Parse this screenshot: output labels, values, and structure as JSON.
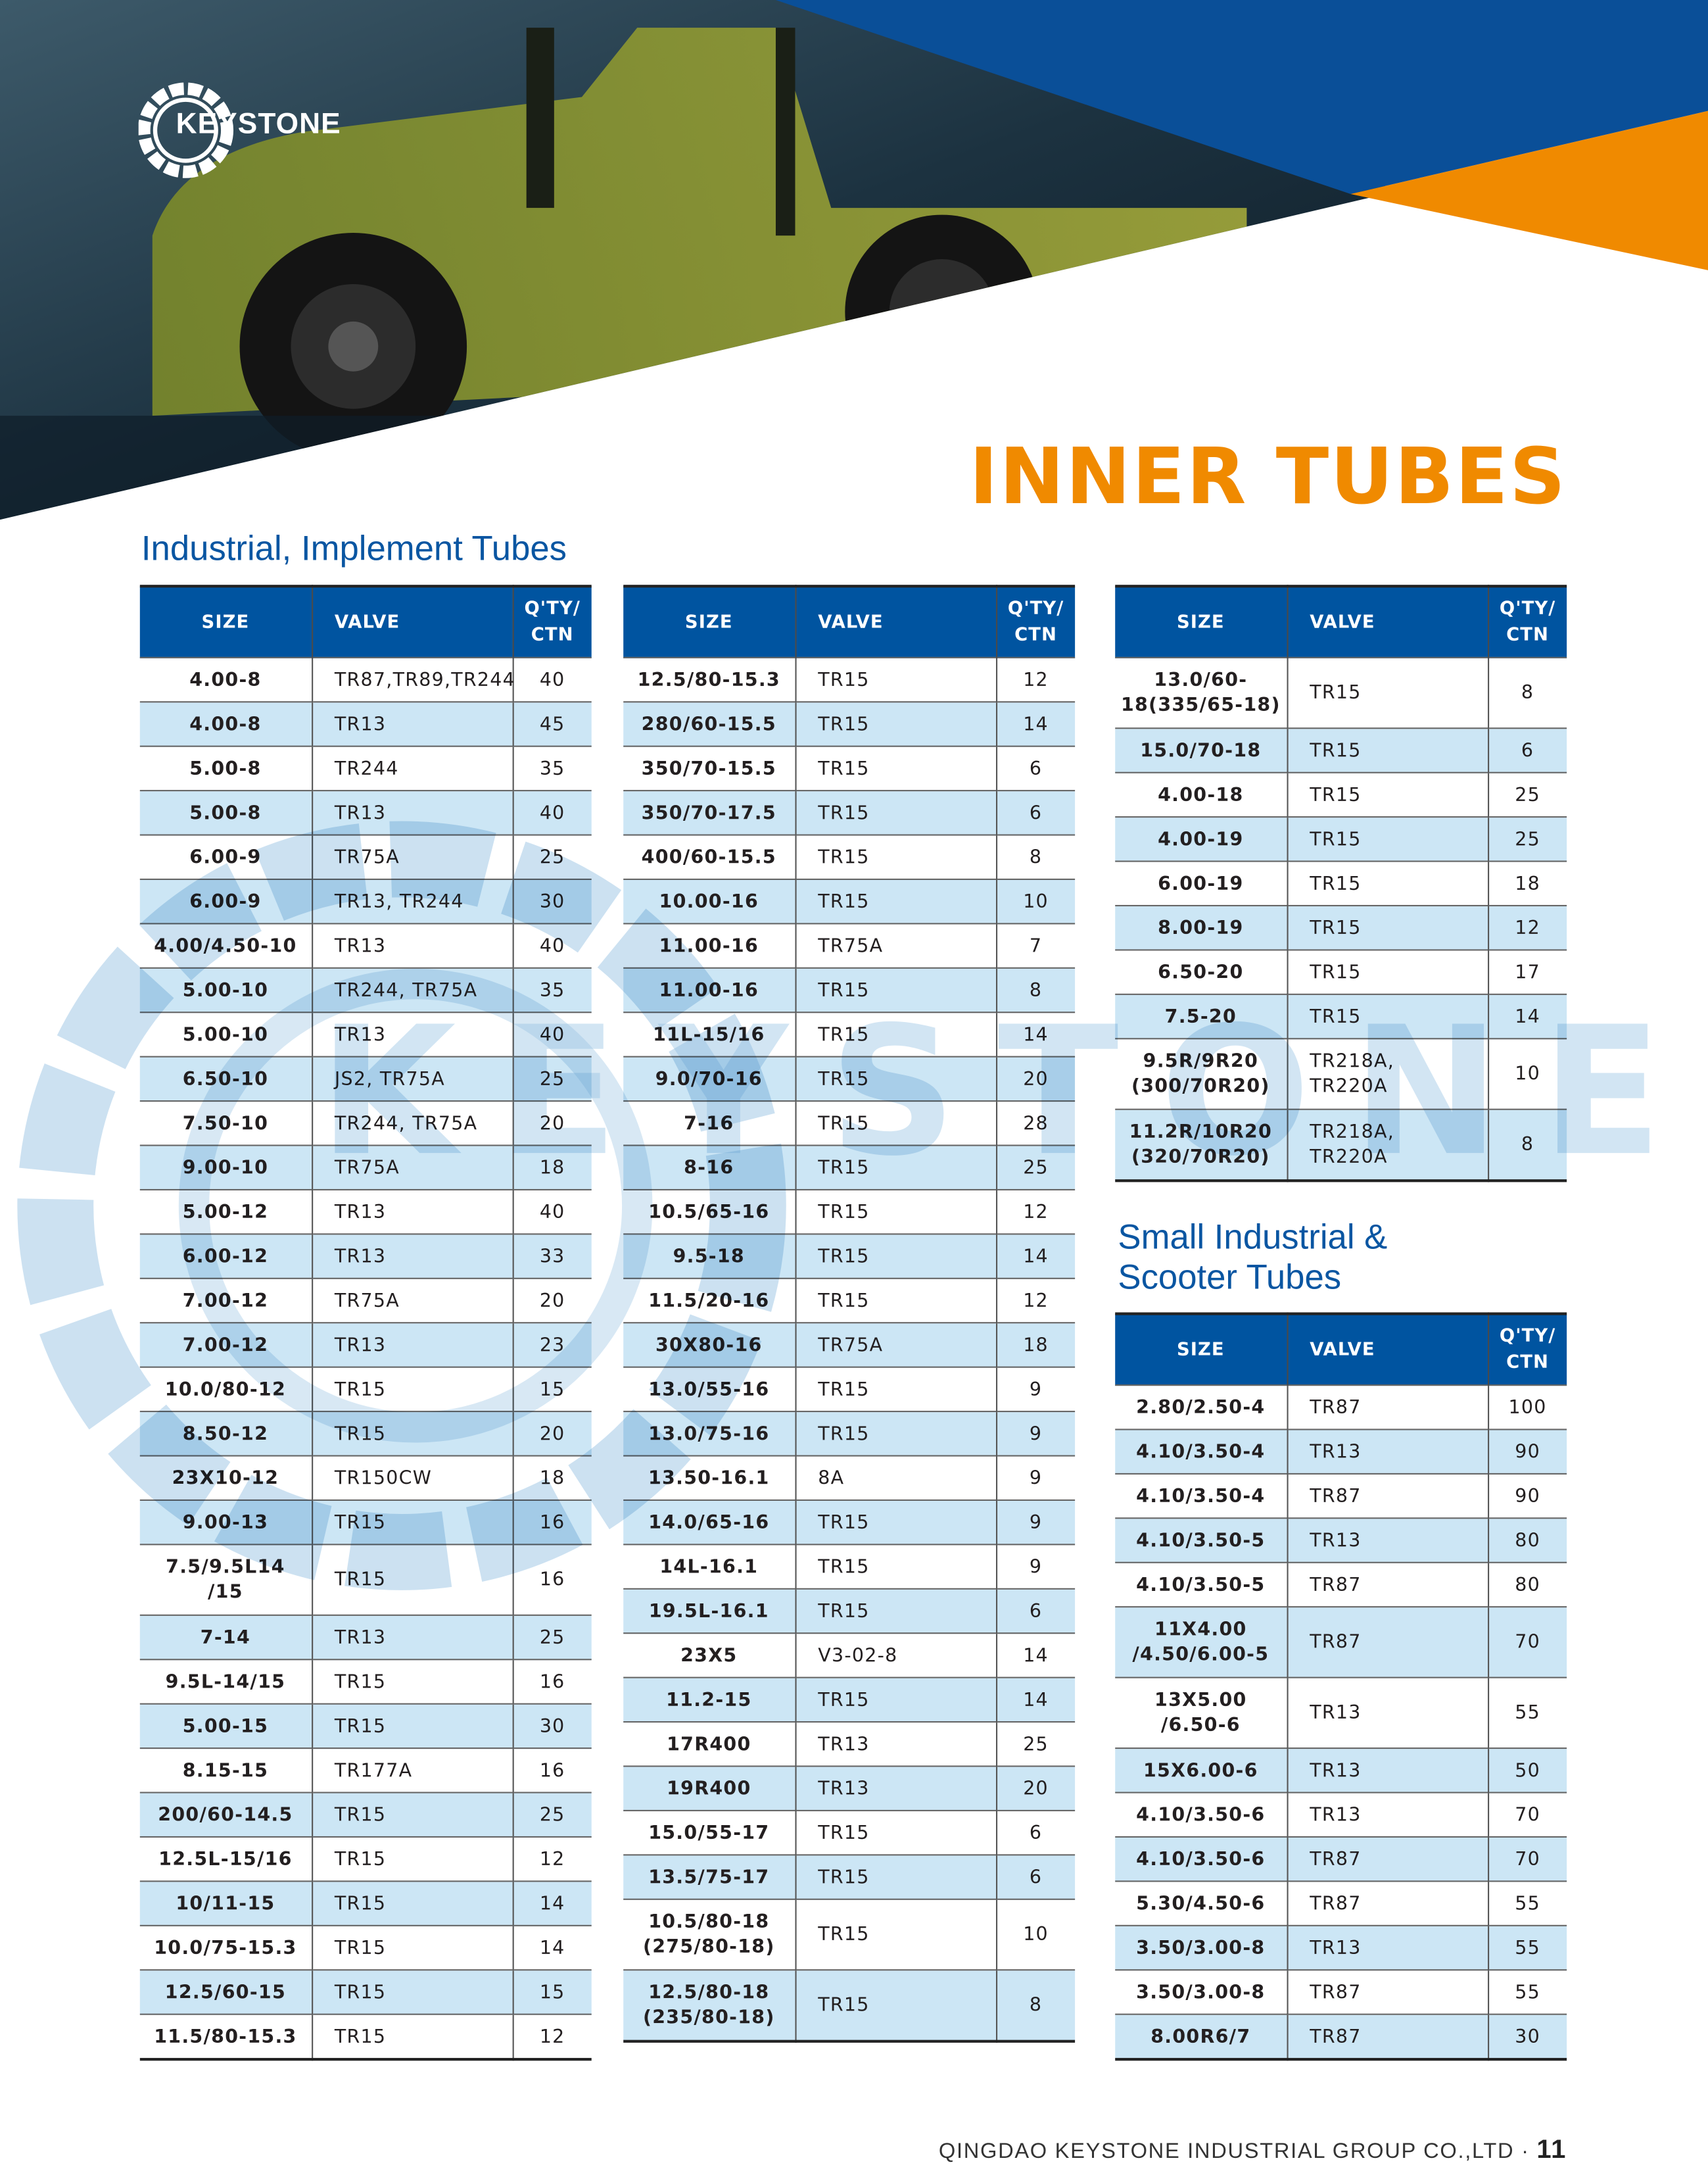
{
  "brand": {
    "logo_text": "KEYSTONE",
    "watermark_text": "KEYSTONE"
  },
  "colors": {
    "brand_blue": "#0054a0",
    "accent_orange": "#f08a00",
    "row_alt": "#cce6f5",
    "heading_blue": "#0a56a2"
  },
  "title": "INNER TUBES",
  "sections": {
    "industrial": "Industrial, Implement Tubes",
    "small": "Small Industrial &\nScooter Tubes"
  },
  "headers": {
    "size": "SIZE",
    "valve": "VALVE",
    "qty": "Q'TY/\nCTN"
  },
  "tables": [
    {
      "rows": [
        [
          "4.00-8",
          "TR87,TR89,TR244",
          "40"
        ],
        [
          "4.00-8",
          "TR13",
          "45"
        ],
        [
          "5.00-8",
          "TR244",
          "35"
        ],
        [
          "5.00-8",
          "TR13",
          "40"
        ],
        [
          "6.00-9",
          "TR75A",
          "25"
        ],
        [
          "6.00-9",
          "TR13, TR244",
          "30"
        ],
        [
          "4.00/4.50-10",
          "TR13",
          "40"
        ],
        [
          "5.00-10",
          "TR244, TR75A",
          "35"
        ],
        [
          "5.00-10",
          "TR13",
          "40"
        ],
        [
          "6.50-10",
          "JS2, TR75A",
          "25"
        ],
        [
          "7.50-10",
          "TR244, TR75A",
          "20"
        ],
        [
          "9.00-10",
          "TR75A",
          "18"
        ],
        [
          "5.00-12",
          "TR13",
          "40"
        ],
        [
          "6.00-12",
          "TR13",
          "33"
        ],
        [
          "7.00-12",
          "TR75A",
          "20"
        ],
        [
          "7.00-12",
          "TR13",
          "23"
        ],
        [
          "10.0/80-12",
          "TR15",
          "15"
        ],
        [
          "8.50-12",
          "TR15",
          "20"
        ],
        [
          "23X10-12",
          "TR150CW",
          "18"
        ],
        [
          "9.00-13",
          "TR15",
          "16"
        ],
        [
          "7.5/9.5L14\n/15",
          "TR15",
          "16"
        ],
        [
          "7-14",
          "TR13",
          "25"
        ],
        [
          "9.5L-14/15",
          "TR15",
          "16"
        ],
        [
          "5.00-15",
          "TR15",
          "30"
        ],
        [
          "8.15-15",
          "TR177A",
          "16"
        ],
        [
          "200/60-14.5",
          "TR15",
          "25"
        ],
        [
          "12.5L-15/16",
          "TR15",
          "12"
        ],
        [
          "10/11-15",
          "TR15",
          "14"
        ],
        [
          "10.0/75-15.3",
          "TR15",
          "14"
        ],
        [
          "12.5/60-15",
          "TR15",
          "15"
        ],
        [
          "11.5/80-15.3",
          "TR15",
          "12"
        ]
      ]
    },
    {
      "rows": [
        [
          "12.5/80-15.3",
          "TR15",
          "12"
        ],
        [
          "280/60-15.5",
          "TR15",
          "14"
        ],
        [
          "350/70-15.5",
          "TR15",
          "6"
        ],
        [
          "350/70-17.5",
          "TR15",
          "6"
        ],
        [
          "400/60-15.5",
          "TR15",
          "8"
        ],
        [
          "10.00-16",
          "TR15",
          "10"
        ],
        [
          "11.00-16",
          "TR75A",
          "7"
        ],
        [
          "11.00-16",
          "TR15",
          "8"
        ],
        [
          "11L-15/16",
          "TR15",
          "14"
        ],
        [
          "9.0/70-16",
          "TR15",
          "20"
        ],
        [
          "7-16",
          "TR15",
          "28"
        ],
        [
          "8-16",
          "TR15",
          "25"
        ],
        [
          "10.5/65-16",
          "TR15",
          "12"
        ],
        [
          "9.5-18",
          "TR15",
          "14"
        ],
        [
          "11.5/20-16",
          "TR15",
          "12"
        ],
        [
          "30X80-16",
          "TR75A",
          "18"
        ],
        [
          "13.0/55-16",
          "TR15",
          "9"
        ],
        [
          "13.0/75-16",
          "TR15",
          "9"
        ],
        [
          "13.50-16.1",
          "8A",
          "9"
        ],
        [
          "14.0/65-16",
          "TR15",
          "9"
        ],
        [
          "14L-16.1",
          "TR15",
          "9"
        ],
        [
          "19.5L-16.1",
          "TR15",
          "6"
        ],
        [
          "23X5",
          "V3-02-8",
          "14"
        ],
        [
          "11.2-15",
          "TR15",
          "14"
        ],
        [
          "17R400",
          "TR13",
          "25"
        ],
        [
          "19R400",
          "TR13",
          "20"
        ],
        [
          "15.0/55-17",
          "TR15",
          "6"
        ],
        [
          "13.5/75-17",
          "TR15",
          "6"
        ],
        [
          "10.5/80-18\n(275/80-18)",
          "TR15",
          "10"
        ],
        [
          "12.5/80-18\n(235/80-18)",
          "TR15",
          "8"
        ]
      ]
    },
    {
      "rows": [
        [
          "13.0/60-\n18(335/65-18)",
          "TR15",
          "8"
        ],
        [
          "15.0/70-18",
          "TR15",
          "6"
        ],
        [
          "4.00-18",
          "TR15",
          "25"
        ],
        [
          "4.00-19",
          "TR15",
          "25"
        ],
        [
          "6.00-19",
          "TR15",
          "18"
        ],
        [
          "8.00-19",
          "TR15",
          "12"
        ],
        [
          "6.50-20",
          "TR15",
          "17"
        ],
        [
          "7.5-20",
          "TR15",
          "14"
        ],
        [
          "9.5R/9R20\n(300/70R20)",
          "TR218A,\nTR220A",
          "10"
        ],
        [
          "11.2R/10R20\n(320/70R20)",
          "TR218A,\nTR220A",
          "8"
        ]
      ]
    },
    {
      "rows": [
        [
          "2.80/2.50-4",
          "TR87",
          "100"
        ],
        [
          "4.10/3.50-4",
          "TR13",
          "90"
        ],
        [
          "4.10/3.50-4",
          "TR87",
          "90"
        ],
        [
          "4.10/3.50-5",
          "TR13",
          "80"
        ],
        [
          "4.10/3.50-5",
          "TR87",
          "80"
        ],
        [
          "11X4.00\n/4.50/6.00-5",
          "TR87",
          "70"
        ],
        [
          "13X5.00\n/6.50-6",
          "TR13",
          "55"
        ],
        [
          "15X6.00-6",
          "TR13",
          "50"
        ],
        [
          "4.10/3.50-6",
          "TR13",
          "70"
        ],
        [
          "4.10/3.50-6",
          "TR87",
          "70"
        ],
        [
          "5.30/4.50-6",
          "TR87",
          "55"
        ],
        [
          "3.50/3.00-8",
          "TR13",
          "55"
        ],
        [
          "3.50/3.00-8",
          "TR87",
          "55"
        ],
        [
          "8.00R6/7",
          "TR87",
          "30"
        ]
      ]
    }
  ],
  "footer": {
    "company": "QINGDAO KEYSTONE INDUSTRIAL GROUP CO.,LTD ·",
    "page_number": "11"
  }
}
